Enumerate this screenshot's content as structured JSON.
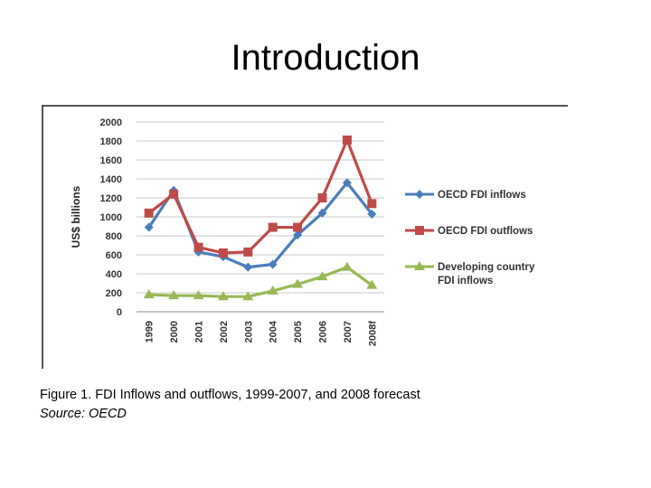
{
  "slide": {
    "title": "Introduction"
  },
  "caption": {
    "figure": "Figure 1. FDI Inflows and outflows, 1999-2007, and 2008 forecast",
    "source": "Source: OECD"
  },
  "chart_data": {
    "type": "line",
    "title": "",
    "xlabel": "",
    "ylabel": "US$ billions",
    "categories": [
      "1999",
      "2000",
      "2001",
      "2002",
      "2003",
      "2004",
      "2005",
      "2006",
      "2007",
      "2008f"
    ],
    "ylim": [
      0,
      2000
    ],
    "yticks": [
      0,
      200,
      400,
      600,
      800,
      1000,
      1200,
      1400,
      1600,
      1800,
      2000
    ],
    "grid": true,
    "legend": "right",
    "series": [
      {
        "name": "OECD FDI inflows",
        "color": "#4a7ebb",
        "marker": "diamond",
        "values": [
          890,
          1280,
          630,
          580,
          470,
          500,
          810,
          1040,
          1360,
          1030
        ]
      },
      {
        "name": "OECD FDI outflows",
        "color": "#be4b48",
        "marker": "square",
        "values": [
          1040,
          1240,
          680,
          620,
          630,
          890,
          890,
          1200,
          1810,
          1140
        ]
      },
      {
        "name": "Developing country FDI inflows",
        "color": "#98b954",
        "marker": "triangle",
        "values": [
          180,
          170,
          170,
          160,
          160,
          220,
          290,
          370,
          470,
          280
        ]
      }
    ]
  }
}
